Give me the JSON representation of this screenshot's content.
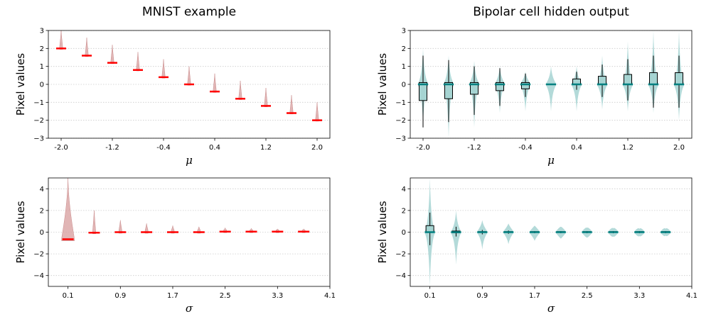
{
  "chart_data": [
    {
      "type": "violin",
      "title": "MNIST example",
      "xlabel": "μ",
      "ylabel": "Pixel values",
      "ylim": [
        -3,
        3
      ],
      "yticks": [
        "3",
        "2",
        "1",
        "0",
        "−1",
        "−2",
        "−3"
      ],
      "xticks": [
        "-2.0",
        "-1.2",
        "-0.4",
        "0.4",
        "1.2",
        "2.0"
      ],
      "grid": "horizontal-dotted",
      "x": [
        -2.0,
        -1.6,
        -1.2,
        -0.8,
        -0.4,
        0.0,
        0.4,
        0.8,
        1.2,
        1.6,
        2.0
      ],
      "median": [
        2.0,
        1.6,
        1.2,
        0.8,
        0.4,
        0.0,
        -0.4,
        -0.8,
        -1.2,
        -1.6,
        -2.0
      ],
      "max": [
        3.0,
        2.6,
        2.2,
        1.8,
        1.4,
        1.0,
        0.6,
        0.2,
        -0.2,
        -0.6,
        -1.0
      ],
      "violin_color": "#d9a3a3",
      "median_color": "#ff0000"
    },
    {
      "type": "violin-box",
      "title": "Bipolar cell hidden output",
      "xlabel": "μ",
      "ylabel": "Pixel values",
      "ylim": [
        -3,
        3
      ],
      "yticks": [
        "3",
        "2",
        "1",
        "0",
        "−1",
        "−2",
        "−3"
      ],
      "xticks": [
        "-2.0",
        "-1.2",
        "-0.4",
        "0.4",
        "1.2",
        "2.0"
      ],
      "grid": "horizontal-dotted",
      "x": [
        -2.0,
        -1.6,
        -1.2,
        -0.8,
        -0.4,
        0.0,
        0.4,
        0.8,
        1.2,
        1.6,
        2.0
      ],
      "violin_min": [
        -2.3,
        -3.0,
        -2.4,
        -1.6,
        -1.5,
        -1.5,
        -1.5,
        -1.4,
        -1.5,
        -1.6,
        -2.0
      ],
      "violin_max": [
        2.0,
        1.6,
        1.3,
        1.0,
        0.7,
        1.0,
        1.0,
        1.6,
        2.4,
        3.0,
        3.0
      ],
      "box_q1": [
        -0.9,
        -0.8,
        -0.55,
        -0.35,
        -0.25,
        0.0,
        0.0,
        0.0,
        0.0,
        0.0,
        0.0
      ],
      "box_q3": [
        0.1,
        0.1,
        0.1,
        0.1,
        0.1,
        0.0,
        0.3,
        0.45,
        0.55,
        0.65,
        0.65
      ],
      "whisker_min": [
        -2.4,
        -2.1,
        -1.7,
        -1.2,
        -0.7,
        0.0,
        -0.3,
        -0.7,
        -0.9,
        -1.3,
        -1.3
      ],
      "whisker_max": [
        1.6,
        1.35,
        1.0,
        0.9,
        0.6,
        0.0,
        0.7,
        1.1,
        1.4,
        1.6,
        1.6
      ],
      "violin_color": "#a6d4d2",
      "median_color": "#008080"
    },
    {
      "type": "violin",
      "title": "",
      "xlabel": "σ",
      "ylabel": "Pixel values",
      "ylim": [
        -5,
        5
      ],
      "yticks": [
        "4",
        "2",
        "0",
        "−2",
        "−4"
      ],
      "xticks": [
        "0.1",
        "0.9",
        "1.7",
        "2.5",
        "3.3",
        "4.1"
      ],
      "grid": "horizontal-dotted",
      "x": [
        0.1,
        0.5,
        0.9,
        1.3,
        1.7,
        2.1,
        2.5,
        2.9,
        3.3,
        3.7
      ],
      "median": [
        -0.65,
        -0.05,
        0.0,
        0.0,
        0.0,
        0.0,
        0.05,
        0.05,
        0.05,
        0.05
      ],
      "min": [
        -0.8,
        -0.15,
        -0.1,
        -0.1,
        -0.1,
        -0.1,
        -0.05,
        -0.05,
        -0.05,
        -0.05
      ],
      "max": [
        5.0,
        2.0,
        1.1,
        0.8,
        0.6,
        0.5,
        0.4,
        0.35,
        0.3,
        0.3
      ],
      "violin_color": "#d9a3a3",
      "median_color": "#ff0000"
    },
    {
      "type": "violin-box",
      "title": "",
      "xlabel": "σ",
      "ylabel": "Pixel values",
      "ylim": [
        -5,
        5
      ],
      "yticks": [
        "4",
        "2",
        "0",
        "−2",
        "−4"
      ],
      "xticks": [
        "0.1",
        "0.9",
        "1.7",
        "2.5",
        "3.3",
        "4.1"
      ],
      "grid": "horizontal-dotted",
      "x": [
        0.1,
        0.5,
        0.9,
        1.3,
        1.7,
        2.1,
        2.5,
        2.9,
        3.3,
        3.7
      ],
      "violin_min": [
        -5.0,
        -3.0,
        -1.6,
        -1.1,
        -0.8,
        -0.6,
        -0.5,
        -0.4,
        -0.35,
        -0.3
      ],
      "violin_max": [
        5.0,
        2.0,
        1.1,
        0.8,
        0.6,
        0.5,
        0.4,
        0.35,
        0.3,
        0.3
      ],
      "box_q1": [
        0.0,
        -0.05,
        0.0,
        0.0,
        0.0,
        0.0,
        0.0,
        0.0,
        0.0,
        0.0
      ],
      "box_q3": [
        0.6,
        0.1,
        0.05,
        0.05,
        0.05,
        0.05,
        0.05,
        0.05,
        0.05,
        0.05
      ],
      "whisker_min": [
        -1.2,
        -0.4,
        -0.2,
        -0.15,
        -0.1,
        -0.1,
        -0.1,
        -0.1,
        -0.1,
        -0.1
      ],
      "whisker_max": [
        1.8,
        0.5,
        0.2,
        0.15,
        0.1,
        0.1,
        0.1,
        0.1,
        0.1,
        0.1
      ],
      "violin_color": "#a6d4d2",
      "median_color": "#008080"
    }
  ]
}
